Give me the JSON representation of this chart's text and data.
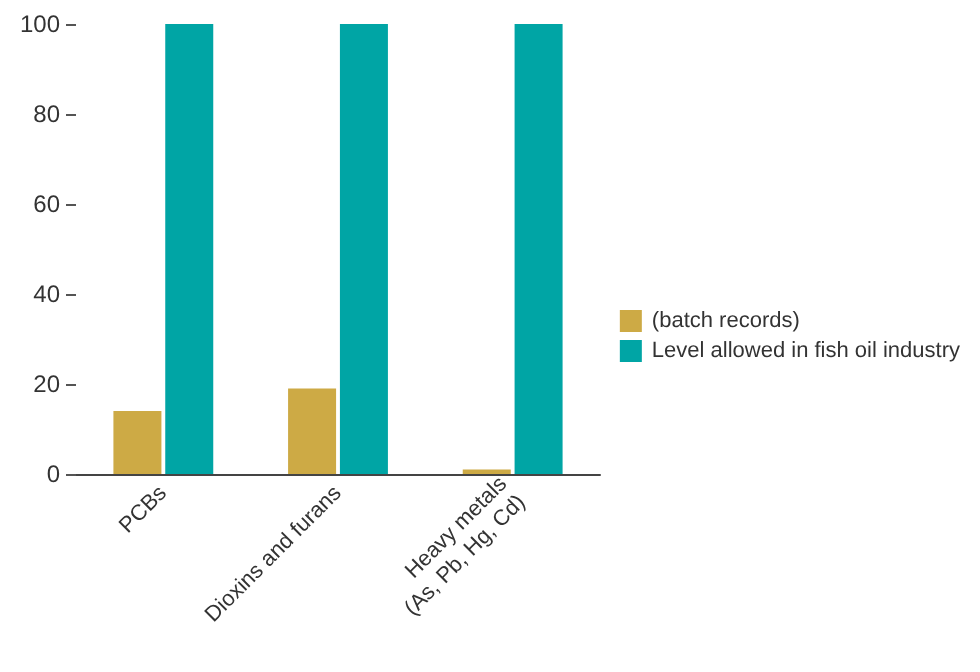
{
  "chart_data": {
    "type": "bar",
    "categories": [
      "PCBs",
      "Dioxins and furans",
      "Heavy metals\n(As, Pb, Hg, Cd)"
    ],
    "series": [
      {
        "name": "(batch records)",
        "color": "#cdaa45",
        "values": [
          14,
          19,
          1
        ]
      },
      {
        "name": "Level allowed in fish oil industry",
        "color": "#00a5a5",
        "values": [
          100,
          100,
          100
        ]
      }
    ],
    "ylim": [
      0,
      100
    ],
    "yticks": [
      0,
      20,
      40,
      60,
      80,
      100
    ],
    "grid": false,
    "legend": "right"
  }
}
